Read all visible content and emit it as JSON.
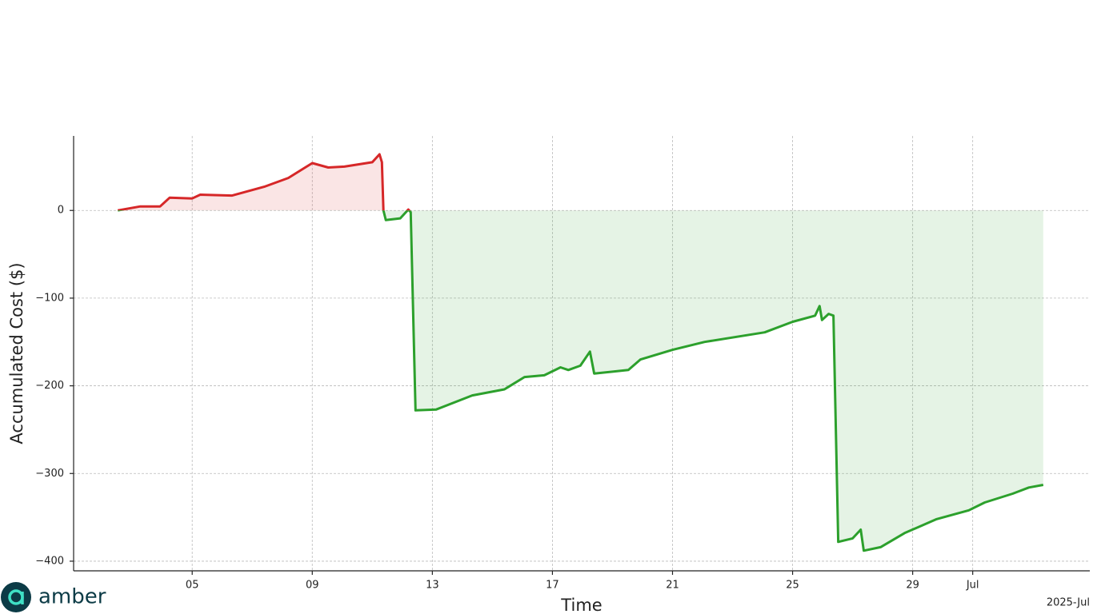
{
  "chart_data": {
    "type": "line",
    "y_label": "Accumulated Cost ($)",
    "x_label": "Time",
    "x_offset_label": "2025-Jul",
    "logo": "amber",
    "pos_color": "#d62728",
    "neg_color": "#2ca02c",
    "grid": true,
    "xlim": [
      1.05,
      34.9
    ],
    "ylim": [
      -411,
      85
    ],
    "xticks": [
      {
        "value": 5,
        "label": "05"
      },
      {
        "value": 9,
        "label": "09"
      },
      13,
      17,
      21,
      25,
      29,
      {
        "value": 31,
        "label": "Jul"
      }
    ],
    "yticks": [
      {
        "value": -400,
        "label": "−400"
      },
      {
        "value": -300,
        "label": "−300"
      },
      {
        "value": -200,
        "label": "−200"
      },
      {
        "value": -100,
        "label": "−100"
      },
      0
    ],
    "series": [
      {
        "x": [
          2.52,
          3.27,
          3.93,
          4.25,
          5,
          5.27,
          6.33,
          7.4,
          8.2,
          9,
          9.53,
          10.07,
          11,
          11.24,
          11.32,
          11.37,
          11.45,
          11.93,
          12.2,
          12.28,
          12.44,
          13.13,
          14.33,
          15.4,
          16.07,
          16.73,
          17.27,
          17.53,
          17.93,
          18.25,
          18.39,
          19.53,
          19.93,
          21,
          22.07,
          24.07,
          25,
          25.75,
          25.9,
          25.98,
          26.2,
          26.36,
          26.52,
          27,
          27.27,
          27.37,
          27.93,
          28.73,
          29.8,
          30.87,
          31.4,
          32.33,
          32.87,
          33.35
        ],
        "values": [
          0,
          4.6,
          4.6,
          14.6,
          13.7,
          18,
          17,
          27,
          37,
          54,
          49,
          50,
          55,
          64,
          55,
          0,
          -11,
          -9,
          1,
          -2,
          -228,
          -227,
          -211,
          -204,
          -190,
          -188,
          -179,
          -182,
          -177,
          -161,
          -186,
          -182,
          -170,
          -159,
          -150,
          -139,
          -127,
          -120,
          -109,
          -125,
          -118,
          -120,
          -378,
          -374,
          -364,
          -388,
          -384,
          -368,
          -352,
          -342,
          -333,
          -323,
          -316,
          -313
        ]
      }
    ]
  }
}
